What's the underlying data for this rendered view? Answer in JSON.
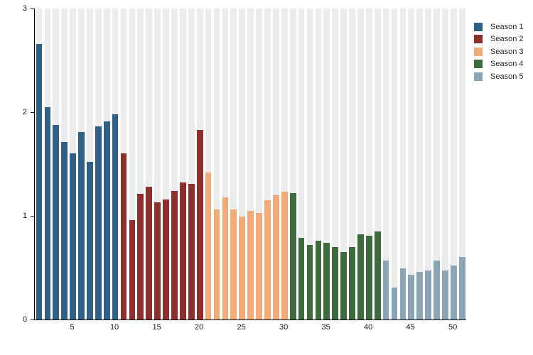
{
  "figure": {
    "background": "#ffffff",
    "plot": {
      "stripe_color": "#ececec",
      "axis_color": "#000000",
      "yticks": [
        "0",
        "1",
        "2",
        "3"
      ],
      "xticks": [
        5,
        10,
        15,
        20,
        25,
        30,
        35,
        40,
        45,
        50
      ]
    }
  },
  "legend": {
    "position": "top-right",
    "items": [
      {
        "label": "Season 1",
        "color": "#2e5f87"
      },
      {
        "label": "Season 2",
        "color": "#8e2f2d"
      },
      {
        "label": "Season 3",
        "color": "#f2ab76"
      },
      {
        "label": "Season 4",
        "color": "#3e6b3c"
      },
      {
        "label": "Season 5",
        "color": "#8ba4b6"
      }
    ]
  },
  "chart_data": {
    "type": "bar",
    "title": "",
    "xlabel": "",
    "ylabel": "",
    "ylim": [
      0,
      3
    ],
    "yticks": [
      0,
      1,
      2,
      3
    ],
    "xticks": [
      5,
      10,
      15,
      20,
      25,
      30,
      35,
      40,
      45,
      50
    ],
    "x_range": [
      1,
      51
    ],
    "grid": "off",
    "background_tracks": true,
    "legend_position": "top-right",
    "series": [
      {
        "name": "Season 1",
        "color": "#2e5f87",
        "episode_start": 1,
        "values": [
          2.66,
          2.05,
          1.88,
          1.71,
          1.6,
          1.81,
          1.52,
          1.86,
          1.91,
          1.98
        ]
      },
      {
        "name": "Season 2",
        "color": "#8e2f2d",
        "episode_start": 11,
        "values": [
          1.6,
          0.96,
          1.21,
          1.28,
          1.13,
          1.16,
          1.24,
          1.32,
          1.31,
          1.83
        ]
      },
      {
        "name": "Season 3",
        "color": "#f2ab76",
        "episode_start": 21,
        "values": [
          1.42,
          1.06,
          1.18,
          1.06,
          0.99,
          1.05,
          1.03,
          1.15,
          1.2,
          1.23
        ]
      },
      {
        "name": "Season 4",
        "color": "#3e6b3c",
        "episode_start": 31,
        "values": [
          1.22,
          0.79,
          0.72,
          0.76,
          0.74,
          0.7,
          0.65,
          0.7,
          0.82,
          0.81,
          0.85
        ]
      },
      {
        "name": "Season 5",
        "color": "#8ba4b6",
        "episode_start": 42,
        "values": [
          0.57,
          0.31,
          0.49,
          0.43,
          0.46,
          0.47,
          0.57,
          0.47,
          0.52,
          0.6
        ]
      }
    ]
  }
}
